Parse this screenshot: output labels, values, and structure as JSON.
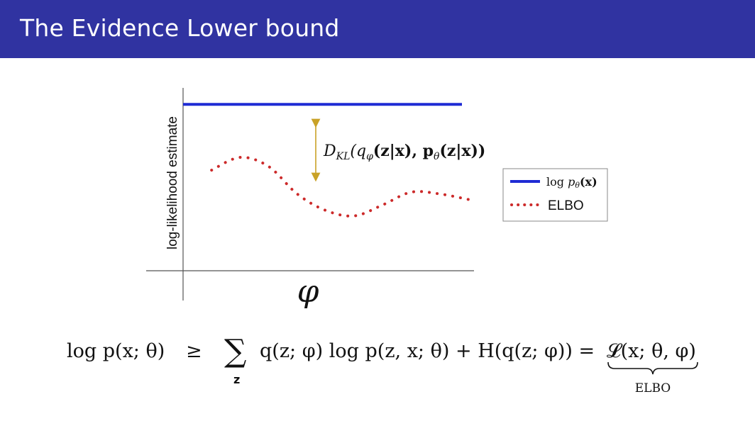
{
  "slide": {
    "title": "The Evidence Lower bound"
  },
  "figure": {
    "ylabel": "log-likelihood estimate",
    "xlabel": "φ",
    "gap_annotation": {
      "D": "D",
      "sub": "KL",
      "body": "(q",
      "phi": "φ",
      "zx1": "(z|x), p",
      "theta": "θ",
      "zx2": "(z|x))"
    },
    "legend": {
      "log_label": "log ",
      "p": "p",
      "theta": "θ",
      "x": "(x)",
      "elbo_label": "ELBO"
    }
  },
  "chart_data": {
    "type": "line",
    "title": "",
    "xlabel": "φ",
    "ylabel": "log-likelihood estimate",
    "series": [
      {
        "name": "log pθ(x)",
        "style": "solid",
        "color": "#1f2bd4",
        "x": [
          0,
          1
        ],
        "y": [
          0.91,
          0.91
        ]
      },
      {
        "name": "ELBO",
        "style": "dotted",
        "color": "#cc2a2a",
        "x": [
          0.1,
          0.2,
          0.3,
          0.4,
          0.5,
          0.6,
          0.7,
          0.8,
          0.9,
          1.0
        ],
        "y": [
          0.55,
          0.62,
          0.57,
          0.42,
          0.33,
          0.3,
          0.36,
          0.43,
          0.42,
          0.39
        ]
      }
    ],
    "annotations": [
      "D_KL(q_φ(z|x), p_θ(z|x))"
    ],
    "legend_position": "right",
    "grid": false
  },
  "formula": {
    "lhs": "log p(x; θ)",
    "geq": "≥",
    "sum": "∑",
    "sum_sub": "z",
    "rhs": "q(z; φ) log p(z, x; θ) + H(q(z; φ)) =",
    "elbo_expr": "𝓛(x; θ, φ)",
    "underbrace_label": "ELBO"
  },
  "colors": {
    "title_bar": "#3033a1",
    "title_text": "#ffffff",
    "log_p_line": "#1f2bd4",
    "elbo_dots": "#cc2a2a",
    "kl_arrow": "#c9a227",
    "axis": "#555555"
  }
}
